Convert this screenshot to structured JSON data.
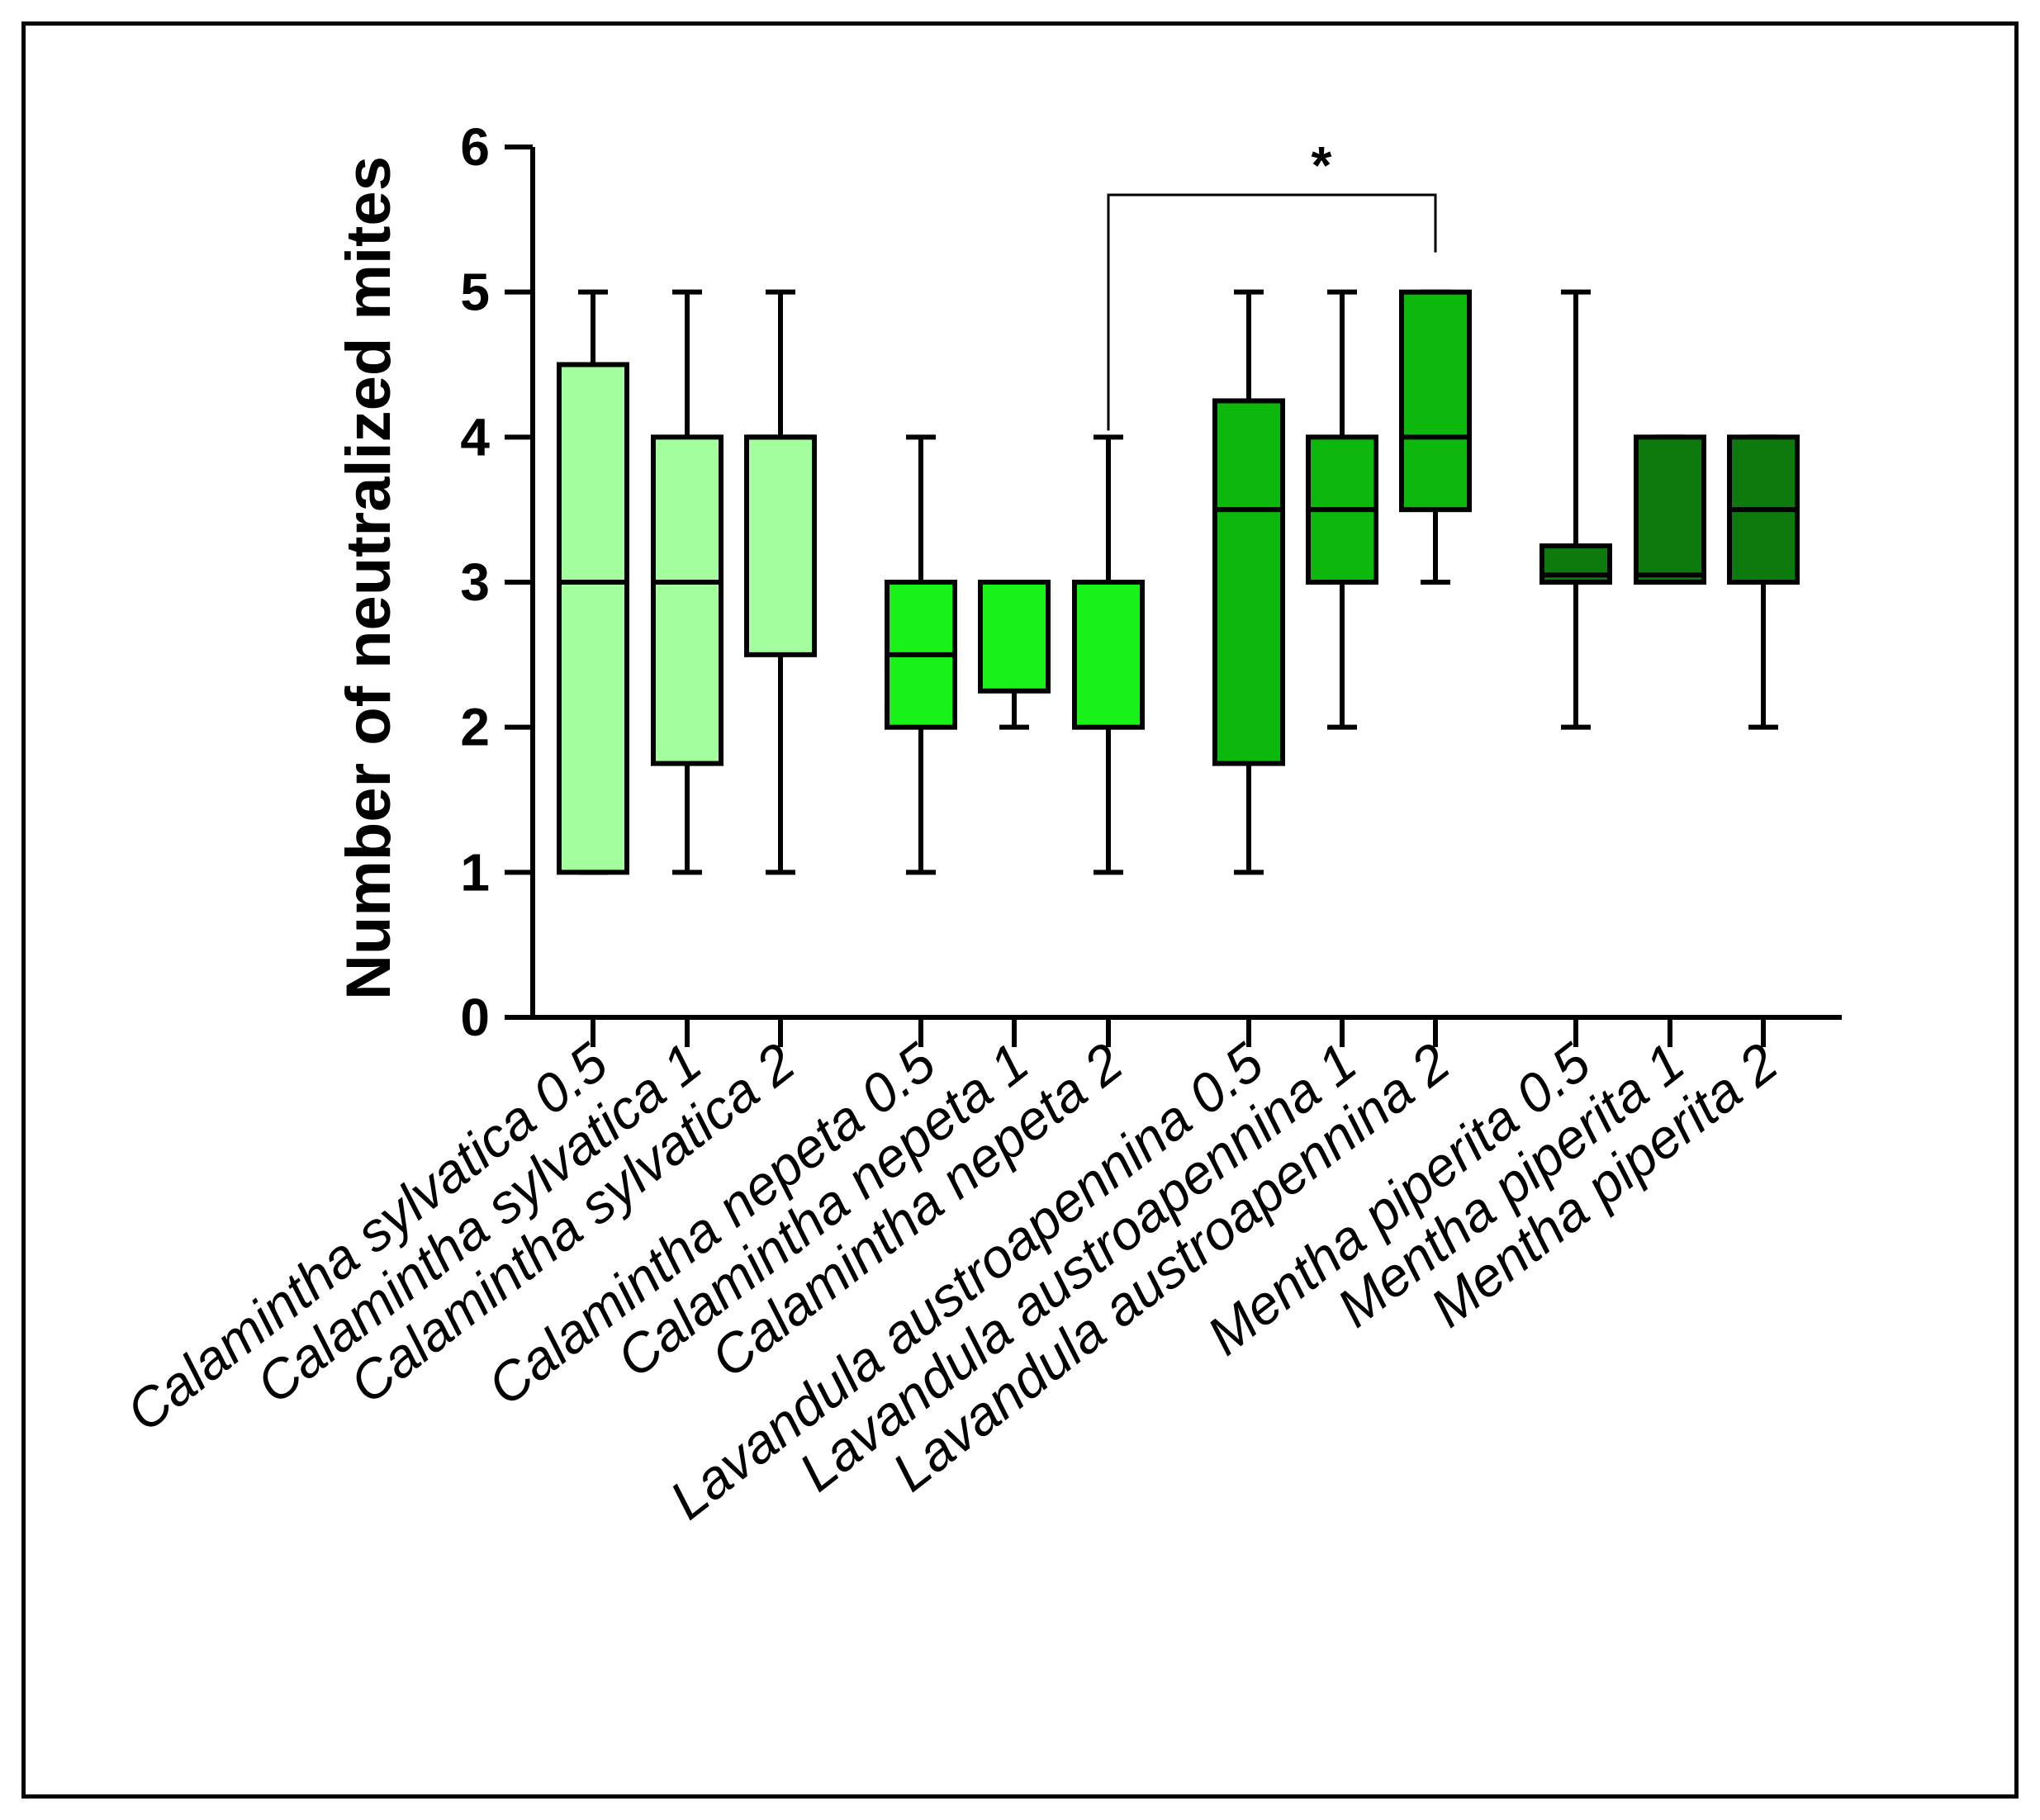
{
  "chart_data": {
    "type": "boxplot",
    "title": "",
    "xlabel": "",
    "ylabel": "Number of neutralized mites",
    "ylim": [
      0,
      6
    ],
    "yticks": [
      "0",
      "1",
      "2",
      "3",
      "4",
      "5",
      "6"
    ],
    "categories": [
      "Calamintha sylvatica 0.5",
      "Calamintha sylvatica 1",
      "Calamintha sylvatica 2",
      "Calamintha nepeta 0.5",
      "Calamintha nepeta 1",
      "Calamintha nepeta 2",
      "Lavandula austroapennina 0.5",
      "Lavandula austroapennina 1",
      "Lavandula austroapennina 2",
      "Mentha piperita 0.5",
      "Mentha piperita 1",
      "Mentha piperita 2"
    ],
    "boxes": [
      {
        "min": 1,
        "q1": 1.0,
        "median": 3.0,
        "q3": 4.5,
        "max": 5,
        "color": "#a3ff9e"
      },
      {
        "min": 1,
        "q1": 1.75,
        "median": 3.0,
        "q3": 4.0,
        "max": 5,
        "color": "#a3ff9e"
      },
      {
        "min": 1,
        "q1": 2.5,
        "median": 4.0,
        "q3": 4.0,
        "max": 5,
        "color": "#a3ff9e"
      },
      {
        "min": 1,
        "q1": 2.0,
        "median": 2.5,
        "q3": 3.0,
        "max": 4,
        "color": "#18f218"
      },
      {
        "min": 2,
        "q1": 2.25,
        "median": 3.0,
        "q3": 3.0,
        "max": 3,
        "color": "#18f218"
      },
      {
        "min": 1,
        "q1": 2.0,
        "median": 3.0,
        "q3": 3.0,
        "max": 4,
        "color": "#18f218"
      },
      {
        "min": 1,
        "q1": 1.75,
        "median": 3.5,
        "q3": 4.25,
        "max": 5,
        "color": "#0db80d"
      },
      {
        "min": 2,
        "q1": 3.0,
        "median": 3.5,
        "q3": 4.0,
        "max": 5,
        "color": "#0db80d"
      },
      {
        "min": 3,
        "q1": 3.5,
        "median": 4.0,
        "q3": 5.0,
        "max": 5,
        "color": "#0db80d"
      },
      {
        "min": 2,
        "q1": 3.0,
        "median": 3.05,
        "q3": 3.25,
        "max": 5,
        "color": "#0d7a0d"
      },
      {
        "min": 3,
        "q1": 3.0,
        "median": 3.05,
        "q3": 4.0,
        "max": 4,
        "color": "#0d7a0d"
      },
      {
        "min": 2,
        "q1": 3.0,
        "median": 3.5,
        "q3": 4.0,
        "max": 4,
        "color": "#0d7a0d"
      }
    ],
    "significance": {
      "from_index": 5,
      "to_index": 8,
      "label": "*"
    }
  }
}
